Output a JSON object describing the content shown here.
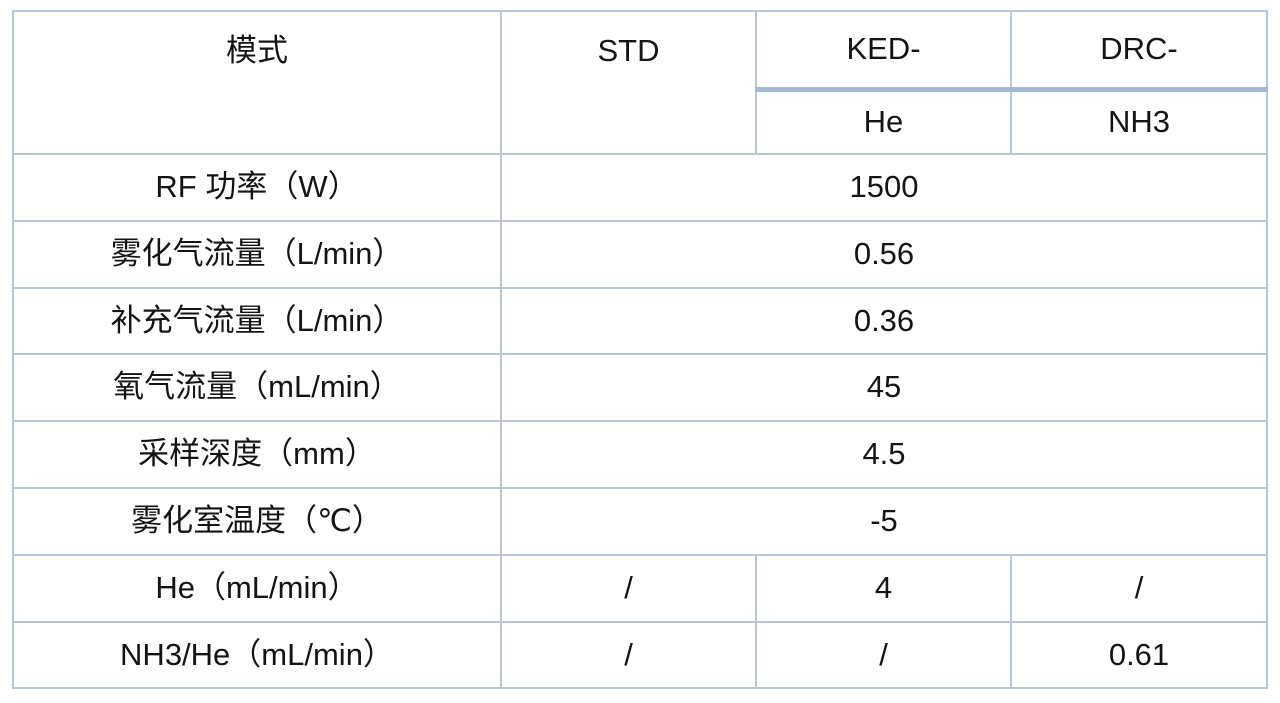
{
  "table": {
    "title_semantic": "instrument-operating-parameters",
    "header": {
      "mode": "模式",
      "std": "STD",
      "ked": "KED-",
      "drc": "DRC-",
      "ked_gas": "He",
      "drc_gas": "NH3"
    },
    "rows": [
      {
        "label": "RF 功率（W）",
        "value": "1500"
      },
      {
        "label": "雾化气流量（L/min）",
        "value": "0.56"
      },
      {
        "label": "补充气流量（L/min）",
        "value": "0.36"
      },
      {
        "label": "氧气流量（mL/min）",
        "value": "45"
      },
      {
        "label": "采样深度（mm）",
        "value": "4.5"
      },
      {
        "label": "雾化室温度（℃）",
        "value": "-5"
      },
      {
        "label": "He（mL/min）",
        "std": "/",
        "ked": "4",
        "drc": "/"
      },
      {
        "label": "NH3/He（mL/min）",
        "std": "/",
        "ked": "/",
        "drc": "0.61"
      }
    ],
    "colors": {
      "border": "#b9c6d7",
      "thick_rule": "#a3b9d4",
      "text": "#141414",
      "background": "#ffffff"
    }
  }
}
